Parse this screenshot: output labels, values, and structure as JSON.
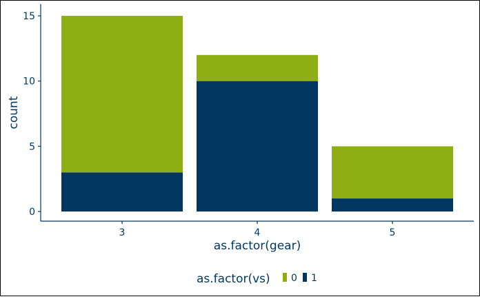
{
  "chart_data": {
    "type": "bar",
    "stacked": true,
    "categories": [
      "3",
      "4",
      "5"
    ],
    "series": [
      {
        "name": "0",
        "values": [
          12,
          2,
          4
        ],
        "color": "#8fad15"
      },
      {
        "name": "1",
        "values": [
          3,
          10,
          1
        ],
        "color": "#00365f"
      }
    ],
    "title": "",
    "xlabel": "as.factor(gear)",
    "ylabel": "count",
    "ylim": [
      0,
      15
    ],
    "yticks": [
      0,
      5,
      10,
      15
    ],
    "grid": false,
    "legend": {
      "title": "as.factor(vs)",
      "position": "bottom"
    },
    "axis_color": "#00365f"
  }
}
